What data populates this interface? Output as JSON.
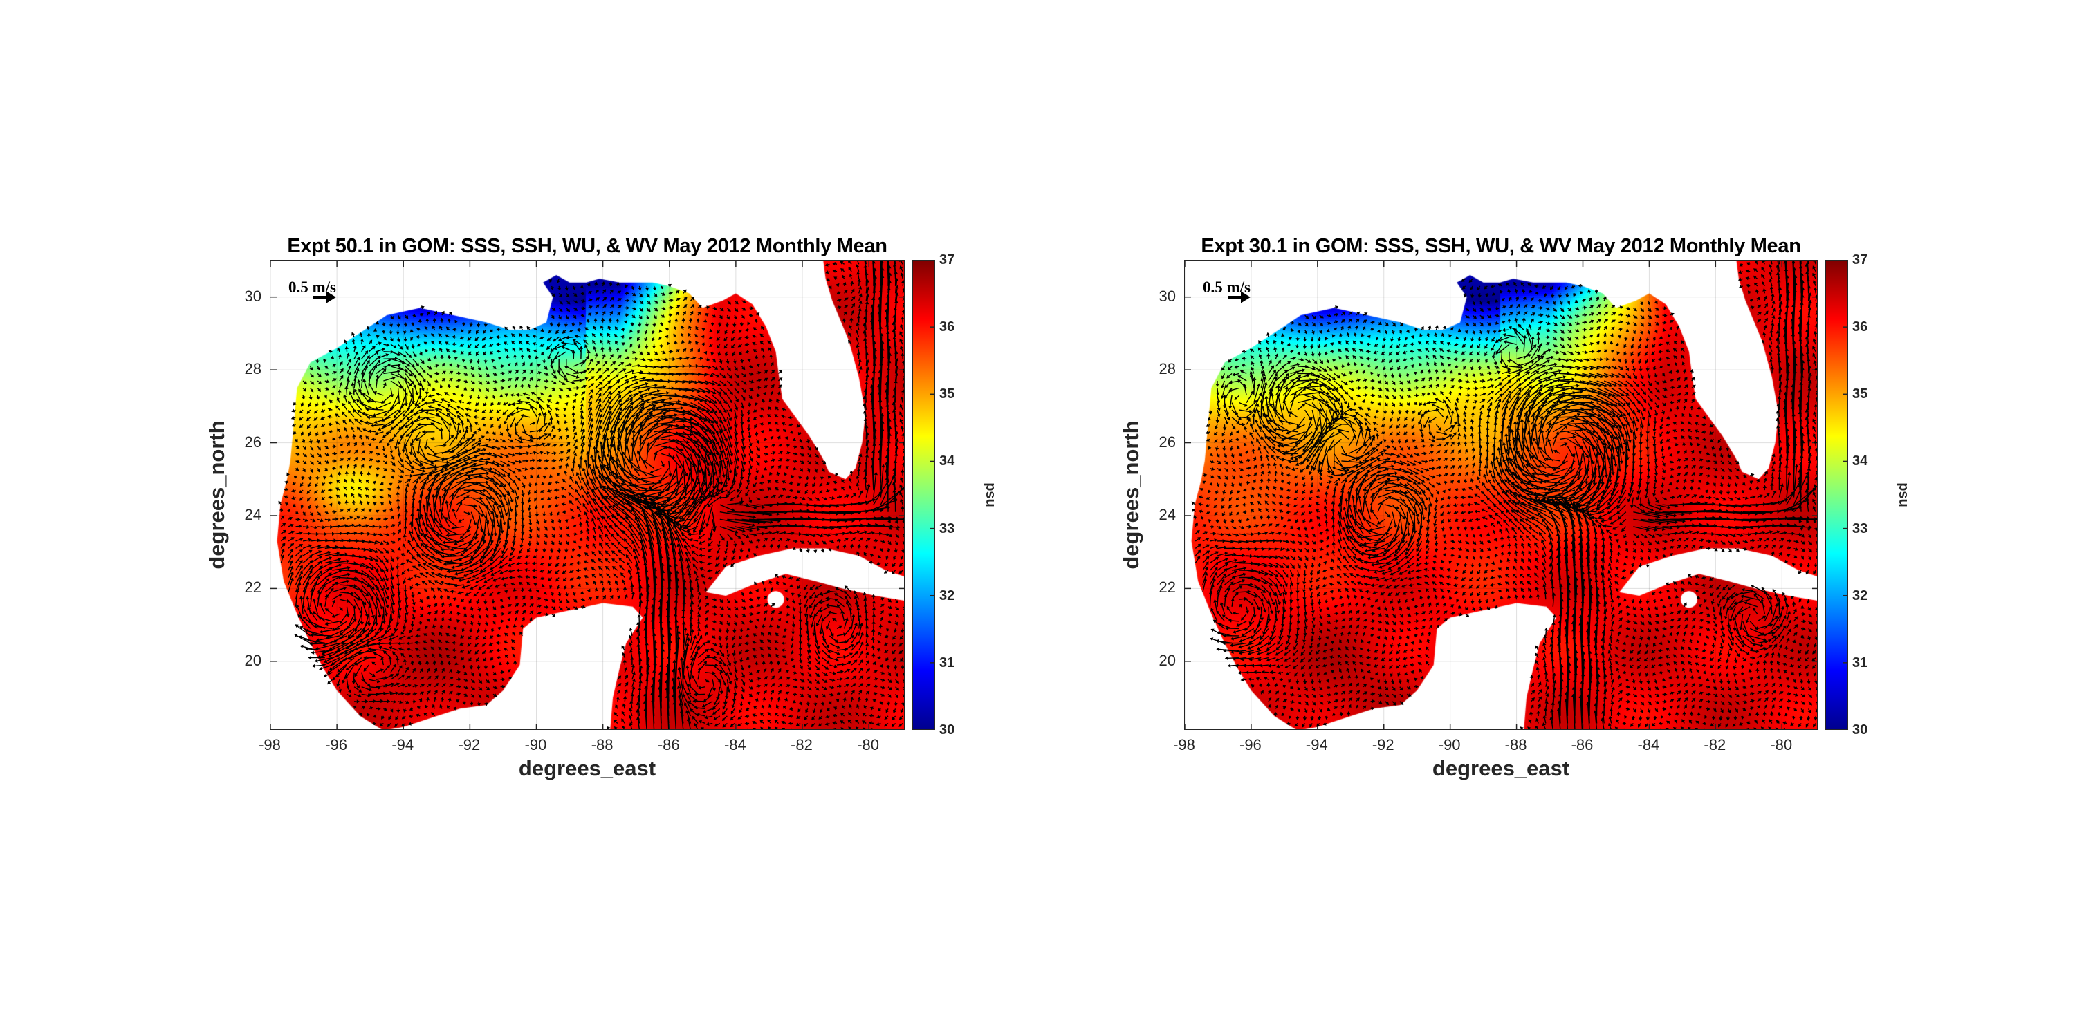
{
  "chart_data": [
    {
      "type": "heatmap",
      "title": "Expt 50.1 in GOM: SSS, SSH, WU, & WV May 2012 Monthly Mean",
      "xlabel": "degrees_east",
      "ylabel": "degrees_north",
      "xlim": [
        -98,
        -78.9
      ],
      "ylim": [
        18.1,
        31
      ],
      "xticks": [
        "-98",
        "-96",
        "-94",
        "-92",
        "-90",
        "-88",
        "-86",
        "-84",
        "-82",
        "-80"
      ],
      "yticks": [
        "20",
        "22",
        "24",
        "26",
        "28",
        "30"
      ],
      "grid": true,
      "colormap": "jet",
      "colorbar": {
        "label": "psu",
        "range": [
          30,
          37
        ],
        "ticks": [
          "30",
          "31",
          "32",
          "33",
          "34",
          "35",
          "36",
          "37"
        ]
      },
      "overlay": "velocity vectors (quiver)",
      "reference_vector": "0.5 m/s"
    },
    {
      "type": "heatmap",
      "title": "Expt 30.1 in GOM: SSS, SSH, WU, & WV May 2012 Monthly Mean",
      "xlabel": "degrees_east",
      "ylabel": "degrees_north",
      "xlim": [
        -98,
        -78.9
      ],
      "ylim": [
        18.1,
        31
      ],
      "xticks": [
        "-98",
        "-96",
        "-94",
        "-92",
        "-90",
        "-88",
        "-86",
        "-84",
        "-82",
        "-80"
      ],
      "yticks": [
        "20",
        "22",
        "24",
        "26",
        "28",
        "30"
      ],
      "grid": true,
      "colormap": "jet",
      "colorbar": {
        "label": "psu",
        "range": [
          30,
          37
        ],
        "ticks": [
          "30",
          "31",
          "32",
          "33",
          "34",
          "35",
          "36",
          "37"
        ]
      },
      "overlay": "velocity vectors (quiver)",
      "reference_vector": "0.5 m/s"
    }
  ]
}
